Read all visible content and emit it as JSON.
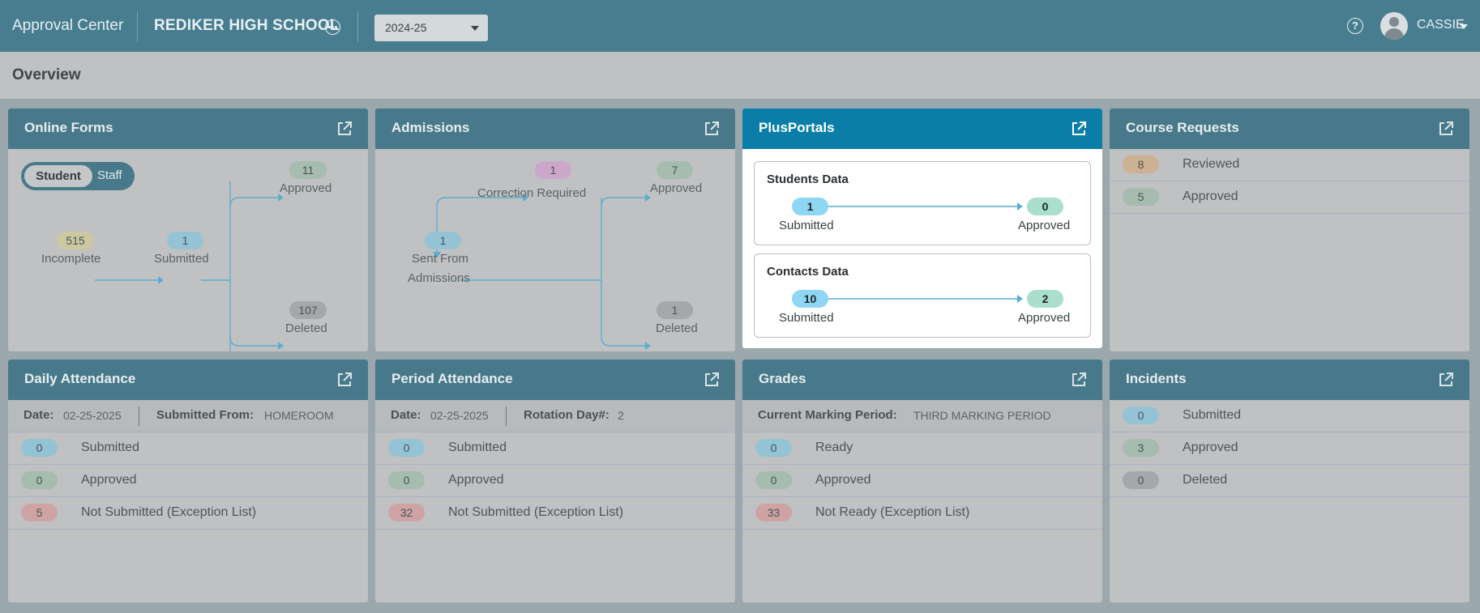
{
  "header": {
    "app_title": "Approval Center",
    "school_name": "REDIKER HIGH SCHOOL",
    "school_menu_icon": "ellipsis-circle-icon",
    "year": "2024-25",
    "help_icon": "question-circle-icon",
    "help_glyph": "?",
    "user_name": "CASSIE",
    "accent_color": "#477d8e"
  },
  "overview": {
    "title": "Overview"
  },
  "online_forms": {
    "title": "Online Forms",
    "toggle": {
      "selected": "Student",
      "other": "Staff"
    },
    "incomplete": {
      "count": "515",
      "label": "Incomplete"
    },
    "submitted": {
      "count": "1",
      "label": "Submitted"
    },
    "approved": {
      "count": "11",
      "label": "Approved"
    },
    "deleted": {
      "count": "107",
      "label": "Deleted"
    }
  },
  "admissions": {
    "title": "Admissions",
    "correction": {
      "count": "1",
      "label": "Correction Required"
    },
    "sent": {
      "count": "1",
      "label_line1": "Sent From",
      "label_line2": "Admissions"
    },
    "approved": {
      "count": "7",
      "label": "Approved"
    },
    "deleted": {
      "count": "1",
      "label": "Deleted"
    }
  },
  "plusportals": {
    "title": "PlusPortals",
    "header_color": "#0a7ea8",
    "students": {
      "title": "Students Data",
      "submitted": "1",
      "submitted_label": "Submitted",
      "approved": "0",
      "approved_label": "Approved"
    },
    "contacts": {
      "title": "Contacts Data",
      "submitted": "10",
      "submitted_label": "Submitted",
      "approved": "2",
      "approved_label": "Approved"
    }
  },
  "course_requests": {
    "title": "Course Requests",
    "rows": [
      {
        "count": "8",
        "label": "Reviewed"
      },
      {
        "count": "5",
        "label": "Approved"
      }
    ]
  },
  "daily_attendance": {
    "title": "Daily Attendance",
    "date_label": "Date:",
    "date": "02-25-2025",
    "from_label": "Submitted From:",
    "from": "HOMEROOM",
    "rows": [
      {
        "count": "0",
        "label": "Submitted"
      },
      {
        "count": "0",
        "label": "Approved"
      },
      {
        "count": "5",
        "label": "Not Submitted (Exception List)"
      }
    ]
  },
  "period_attendance": {
    "title": "Period Attendance",
    "date_label": "Date:",
    "date": "02-25-2025",
    "rotation_label": "Rotation Day#:",
    "rotation": "2",
    "rows": [
      {
        "count": "0",
        "label": "Submitted"
      },
      {
        "count": "0",
        "label": "Approved"
      },
      {
        "count": "32",
        "label": "Not Submitted (Exception List)"
      }
    ]
  },
  "grades": {
    "title": "Grades",
    "mp_label": "Current Marking Period:",
    "mp": "THIRD MARKING PERIOD",
    "rows": [
      {
        "count": "0",
        "label": "Ready"
      },
      {
        "count": "0",
        "label": "Approved"
      },
      {
        "count": "33",
        "label": "Not Ready (Exception List)"
      }
    ]
  },
  "incidents": {
    "title": "Incidents",
    "rows": [
      {
        "count": "0",
        "label": "Submitted"
      },
      {
        "count": "3",
        "label": "Approved"
      },
      {
        "count": "0",
        "label": "Deleted"
      }
    ]
  }
}
